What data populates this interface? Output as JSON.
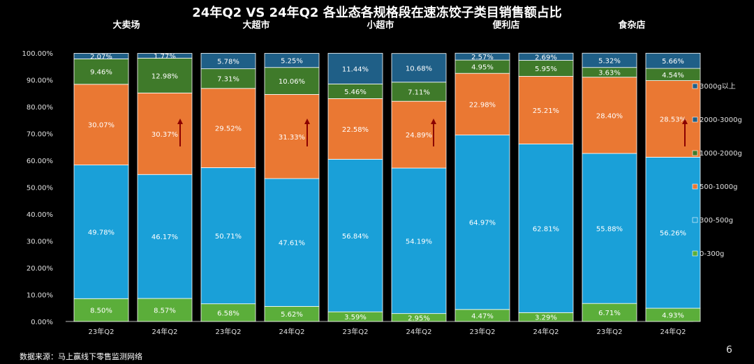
{
  "page": {
    "title": "24年Q2 VS 24年Q2 各业态各规格段在速冻饺子类目销售额占比",
    "source": "数据来源：马上赢线下零售监测网络",
    "page_number": "6"
  },
  "colors": {
    "3000g以上": "#1F5F87",
    "2000-3000g": "#1F5F87",
    "1000-2000g": "#3F7A2A",
    "500-1000g": "#EA7833",
    "300-500g": "#1AA0D8",
    "0-300g": "#5BAE3A",
    "arrow": "#8B0000",
    "axis_text": "#e0e0e0"
  },
  "chart_data": {
    "type": "bar",
    "stacked": true,
    "title": "24年Q2 VS 24年Q2 各业态各规格段在速冻饺子类目销售额占比",
    "groups": [
      "大卖场",
      "大超市",
      "小超市",
      "便利店",
      "食杂店"
    ],
    "categories": [
      "23年Q2",
      "24年Q2",
      "23年Q2",
      "24年Q2",
      "23年Q2",
      "24年Q2",
      "23年Q2",
      "24年Q2",
      "23年Q2",
      "24年Q2"
    ],
    "ylim": [
      0,
      100
    ],
    "yticks": [
      "0.00%",
      "10.00%",
      "20.00%",
      "30.00%",
      "40.00%",
      "50.00%",
      "60.00%",
      "70.00%",
      "80.00%",
      "90.00%",
      "100.00%"
    ],
    "legend_position": "right",
    "series": [
      {
        "name": "0-300g",
        "values": [
          8.5,
          8.57,
          6.58,
          5.62,
          3.59,
          2.95,
          4.47,
          3.29,
          6.71,
          4.93
        ],
        "labels": [
          "8.50%",
          "8.57%",
          "6.58%",
          "5.62%",
          "3.59%",
          "2.95%",
          "4.47%",
          "3.29%",
          "6.71%",
          "4.93%"
        ]
      },
      {
        "name": "300-500g",
        "values": [
          49.78,
          46.17,
          50.71,
          47.61,
          56.84,
          54.19,
          64.97,
          62.81,
          55.88,
          56.26
        ],
        "labels": [
          "49.78%",
          "46.17%",
          "50.71%",
          "47.61%",
          "56.84%",
          "54.19%",
          "64.97%",
          "62.81%",
          "55.88%",
          "56.26%"
        ]
      },
      {
        "name": "500-1000g",
        "values": [
          30.07,
          30.37,
          29.52,
          31.33,
          22.58,
          24.89,
          22.98,
          25.21,
          28.4,
          28.53
        ],
        "labels": [
          "30.07%",
          "30.37%",
          "29.52%",
          "31.33%",
          "22.58%",
          "24.89%",
          "22.98%",
          "25.21%",
          "28.40%",
          "28.53%"
        ]
      },
      {
        "name": "1000-2000g",
        "values": [
          9.46,
          12.98,
          7.31,
          10.06,
          5.46,
          7.11,
          4.95,
          5.95,
          3.63,
          4.54
        ],
        "labels": [
          "9.46%",
          "12.98%",
          "7.31%",
          "10.06%",
          "5.46%",
          "7.11%",
          "4.95%",
          "5.95%",
          "3.63%",
          "4.54%"
        ]
      },
      {
        "name": "2000-3000g",
        "values": [
          2.07,
          1.77,
          5.78,
          5.25,
          11.44,
          10.68,
          2.57,
          2.69,
          5.32,
          5.66
        ],
        "labels": [
          "2.07%",
          "1.77%",
          "5.78%",
          "5.25%",
          "11.44%",
          "10.68%",
          "2.57%",
          "2.69%",
          "5.32%",
          "5.66%"
        ]
      }
    ],
    "legend": [
      "3000g以上",
      "2000-3000g",
      "1000-2000g",
      "500-1000g",
      "300-500g",
      "0-300g"
    ],
    "arrows": [
      "up",
      "up",
      "up",
      "up"
    ]
  }
}
